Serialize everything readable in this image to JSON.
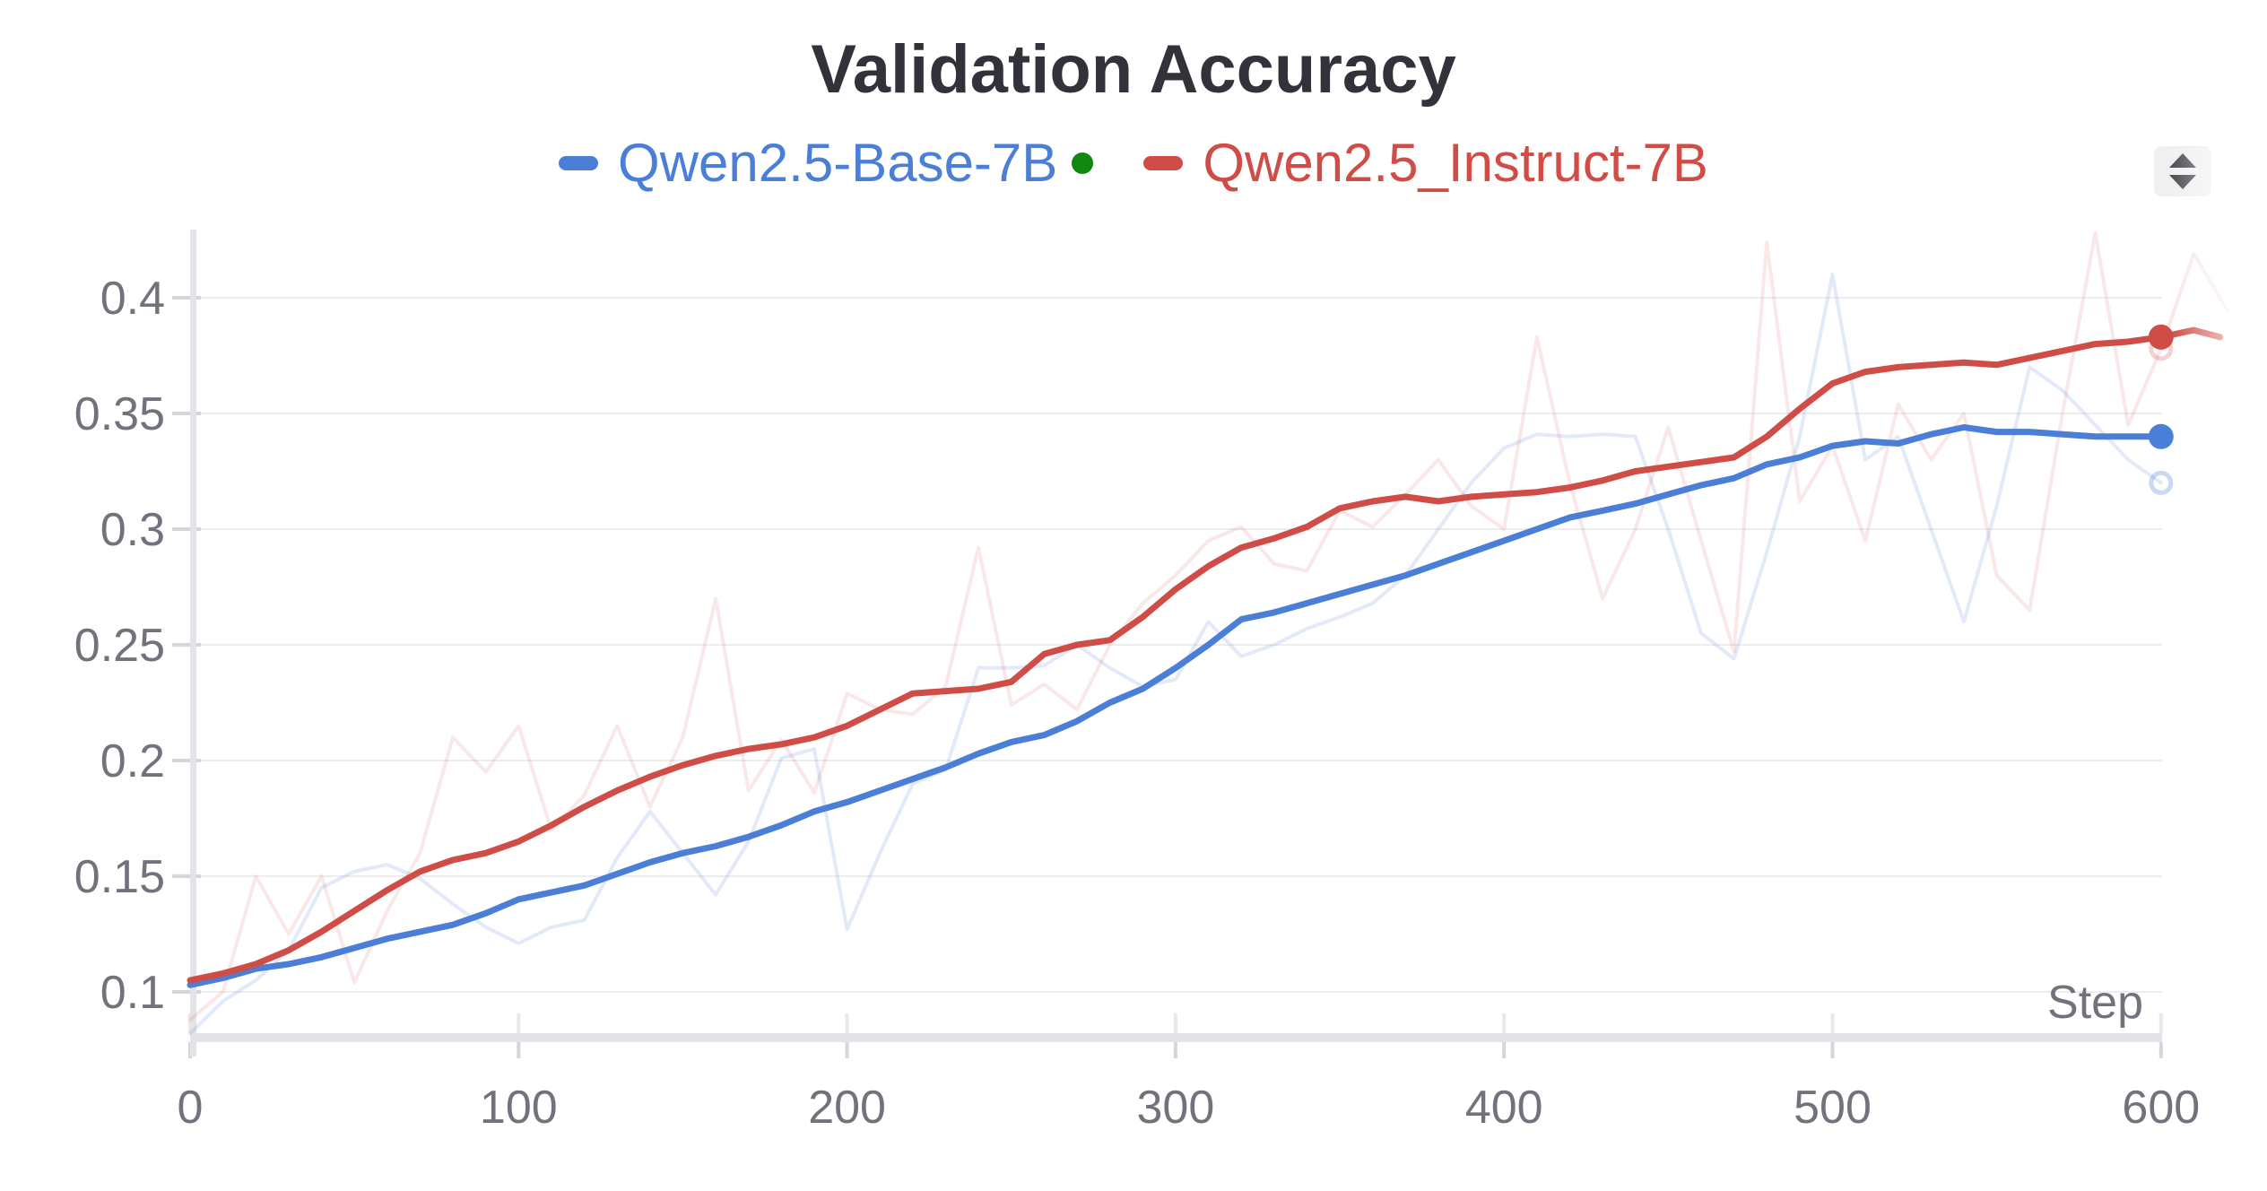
{
  "title": "Validation Accuracy",
  "legend": {
    "items": [
      {
        "label": "Qwen2.5-Base-7B",
        "color": "#4b7ed7"
      },
      {
        "label": "Qwen2.5_Instruct-7B",
        "color": "#d04c46"
      }
    ],
    "live_dot_color": "#10870f"
  },
  "controls": {
    "expand_icon": "up-down-arrows",
    "icon_color": "#4b4b52",
    "icon_bg": "#f0f0f1"
  },
  "chart_data": {
    "type": "line",
    "title": "Validation Accuracy",
    "xlabel": "Step",
    "ylabel": "",
    "x_ticks": [
      0,
      100,
      200,
      300,
      400,
      500,
      600
    ],
    "y_ticks": [
      0.1,
      0.15,
      0.2,
      0.25,
      0.3,
      0.35,
      0.4
    ],
    "xlim": [
      0,
      632
    ],
    "ylim": [
      0.082,
      0.429
    ],
    "grid": "horizontal-only",
    "legend_position": "top-center",
    "axis_color": "#e4e4e8",
    "grid_color": "#ededf0",
    "tick_color": "#d6d6da",
    "label_color": "#72727c",
    "series": [
      {
        "name": "Qwen2.5-Base-7B (raw)",
        "role": "raw",
        "color": "#4b7ed7",
        "opacity": 0.16,
        "width": 4,
        "points": [
          [
            0,
            0.082
          ],
          [
            10,
            0.096
          ],
          [
            20,
            0.105
          ],
          [
            30,
            0.118
          ],
          [
            40,
            0.145
          ],
          [
            50,
            0.152
          ],
          [
            60,
            0.155
          ],
          [
            70,
            0.149
          ],
          [
            80,
            0.138
          ],
          [
            90,
            0.128
          ],
          [
            100,
            0.121
          ],
          [
            110,
            0.128
          ],
          [
            120,
            0.131
          ],
          [
            130,
            0.158
          ],
          [
            140,
            0.178
          ],
          [
            150,
            0.16
          ],
          [
            160,
            0.142
          ],
          [
            170,
            0.165
          ],
          [
            180,
            0.201
          ],
          [
            190,
            0.205
          ],
          [
            200,
            0.127
          ],
          [
            210,
            0.16
          ],
          [
            220,
            0.19
          ],
          [
            230,
            0.196
          ],
          [
            240,
            0.24
          ],
          [
            250,
            0.24
          ],
          [
            260,
            0.241
          ],
          [
            270,
            0.25
          ],
          [
            280,
            0.24
          ],
          [
            290,
            0.232
          ],
          [
            300,
            0.235
          ],
          [
            310,
            0.26
          ],
          [
            320,
            0.245
          ],
          [
            330,
            0.25
          ],
          [
            340,
            0.257
          ],
          [
            350,
            0.262
          ],
          [
            360,
            0.268
          ],
          [
            370,
            0.28
          ],
          [
            380,
            0.3
          ],
          [
            390,
            0.32
          ],
          [
            400,
            0.335
          ],
          [
            410,
            0.341
          ],
          [
            420,
            0.34
          ],
          [
            430,
            0.341
          ],
          [
            440,
            0.34
          ],
          [
            450,
            0.3
          ],
          [
            460,
            0.255
          ],
          [
            470,
            0.244
          ],
          [
            480,
            0.29
          ],
          [
            490,
            0.34
          ],
          [
            500,
            0.41
          ],
          [
            510,
            0.33
          ],
          [
            520,
            0.34
          ],
          [
            530,
            0.3
          ],
          [
            540,
            0.26
          ],
          [
            550,
            0.31
          ],
          [
            560,
            0.37
          ],
          [
            570,
            0.36
          ],
          [
            580,
            0.345
          ],
          [
            590,
            0.33
          ],
          [
            600,
            0.32
          ]
        ]
      },
      {
        "name": "Qwen2.5_Instruct-7B (raw)",
        "role": "raw",
        "color": "#d04c46",
        "opacity": 0.13,
        "width": 4,
        "points": [
          [
            0,
            0.088
          ],
          [
            10,
            0.1
          ],
          [
            20,
            0.15
          ],
          [
            30,
            0.125
          ],
          [
            40,
            0.15
          ],
          [
            50,
            0.104
          ],
          [
            60,
            0.135
          ],
          [
            70,
            0.16
          ],
          [
            80,
            0.21
          ],
          [
            90,
            0.195
          ],
          [
            100,
            0.215
          ],
          [
            110,
            0.17
          ],
          [
            120,
            0.185
          ],
          [
            130,
            0.215
          ],
          [
            140,
            0.18
          ],
          [
            150,
            0.21
          ],
          [
            160,
            0.27
          ],
          [
            170,
            0.187
          ],
          [
            180,
            0.209
          ],
          [
            190,
            0.186
          ],
          [
            200,
            0.229
          ],
          [
            210,
            0.222
          ],
          [
            220,
            0.22
          ],
          [
            230,
            0.232
          ],
          [
            240,
            0.292
          ],
          [
            250,
            0.224
          ],
          [
            260,
            0.233
          ],
          [
            270,
            0.222
          ],
          [
            280,
            0.25
          ],
          [
            290,
            0.268
          ],
          [
            300,
            0.28
          ],
          [
            310,
            0.295
          ],
          [
            320,
            0.301
          ],
          [
            330,
            0.285
          ],
          [
            340,
            0.282
          ],
          [
            350,
            0.308
          ],
          [
            360,
            0.301
          ],
          [
            370,
            0.315
          ],
          [
            380,
            0.33
          ],
          [
            390,
            0.31
          ],
          [
            400,
            0.3
          ],
          [
            410,
            0.383
          ],
          [
            420,
            0.32
          ],
          [
            430,
            0.27
          ],
          [
            440,
            0.3
          ],
          [
            450,
            0.344
          ],
          [
            460,
            0.295
          ],
          [
            470,
            0.247
          ],
          [
            480,
            0.424
          ],
          [
            490,
            0.312
          ],
          [
            500,
            0.336
          ],
          [
            510,
            0.295
          ],
          [
            520,
            0.354
          ],
          [
            530,
            0.33
          ],
          [
            540,
            0.35
          ],
          [
            550,
            0.28
          ],
          [
            560,
            0.265
          ],
          [
            570,
            0.35
          ],
          [
            580,
            0.428
          ],
          [
            590,
            0.345
          ],
          [
            600,
            0.378
          ],
          [
            610,
            0.419
          ],
          [
            620,
            0.395
          ]
        ]
      },
      {
        "name": "Qwen2.5-Base-7B",
        "role": "smoothed",
        "color": "#4b7ed7",
        "opacity": 1,
        "width": 7,
        "points": [
          [
            0,
            0.103
          ],
          [
            10,
            0.106
          ],
          [
            20,
            0.11
          ],
          [
            30,
            0.112
          ],
          [
            40,
            0.115
          ],
          [
            50,
            0.119
          ],
          [
            60,
            0.123
          ],
          [
            70,
            0.126
          ],
          [
            80,
            0.129
          ],
          [
            90,
            0.134
          ],
          [
            100,
            0.14
          ],
          [
            110,
            0.143
          ],
          [
            120,
            0.146
          ],
          [
            130,
            0.151
          ],
          [
            140,
            0.156
          ],
          [
            150,
            0.16
          ],
          [
            160,
            0.163
          ],
          [
            170,
            0.167
          ],
          [
            180,
            0.172
          ],
          [
            190,
            0.178
          ],
          [
            200,
            0.182
          ],
          [
            210,
            0.187
          ],
          [
            220,
            0.192
          ],
          [
            230,
            0.197
          ],
          [
            240,
            0.203
          ],
          [
            250,
            0.208
          ],
          [
            260,
            0.211
          ],
          [
            270,
            0.217
          ],
          [
            280,
            0.225
          ],
          [
            290,
            0.231
          ],
          [
            300,
            0.24
          ],
          [
            310,
            0.25
          ],
          [
            320,
            0.261
          ],
          [
            330,
            0.264
          ],
          [
            340,
            0.268
          ],
          [
            350,
            0.272
          ],
          [
            360,
            0.276
          ],
          [
            370,
            0.28
          ],
          [
            380,
            0.285
          ],
          [
            390,
            0.29
          ],
          [
            400,
            0.295
          ],
          [
            410,
            0.3
          ],
          [
            420,
            0.305
          ],
          [
            430,
            0.308
          ],
          [
            440,
            0.311
          ],
          [
            450,
            0.315
          ],
          [
            460,
            0.319
          ],
          [
            470,
            0.322
          ],
          [
            480,
            0.328
          ],
          [
            490,
            0.331
          ],
          [
            500,
            0.336
          ],
          [
            510,
            0.338
          ],
          [
            520,
            0.337
          ],
          [
            530,
            0.341
          ],
          [
            540,
            0.344
          ],
          [
            550,
            0.342
          ],
          [
            560,
            0.342
          ],
          [
            570,
            0.341
          ],
          [
            580,
            0.34
          ],
          [
            590,
            0.34
          ],
          [
            600,
            0.34
          ]
        ]
      },
      {
        "name": "Qwen2.5_Instruct-7B",
        "role": "smoothed",
        "color": "#d04c46",
        "opacity": 1,
        "width": 7,
        "points": [
          [
            0,
            0.105
          ],
          [
            10,
            0.108
          ],
          [
            20,
            0.112
          ],
          [
            30,
            0.118
          ],
          [
            40,
            0.126
          ],
          [
            50,
            0.135
          ],
          [
            60,
            0.144
          ],
          [
            70,
            0.152
          ],
          [
            80,
            0.157
          ],
          [
            90,
            0.16
          ],
          [
            100,
            0.165
          ],
          [
            110,
            0.172
          ],
          [
            120,
            0.18
          ],
          [
            130,
            0.187
          ],
          [
            140,
            0.193
          ],
          [
            150,
            0.198
          ],
          [
            160,
            0.202
          ],
          [
            170,
            0.205
          ],
          [
            180,
            0.207
          ],
          [
            190,
            0.21
          ],
          [
            200,
            0.215
          ],
          [
            210,
            0.222
          ],
          [
            220,
            0.229
          ],
          [
            230,
            0.23
          ],
          [
            240,
            0.231
          ],
          [
            250,
            0.234
          ],
          [
            260,
            0.246
          ],
          [
            270,
            0.25
          ],
          [
            280,
            0.252
          ],
          [
            290,
            0.262
          ],
          [
            300,
            0.274
          ],
          [
            310,
            0.284
          ],
          [
            320,
            0.292
          ],
          [
            330,
            0.296
          ],
          [
            340,
            0.301
          ],
          [
            350,
            0.309
          ],
          [
            360,
            0.312
          ],
          [
            370,
            0.314
          ],
          [
            380,
            0.312
          ],
          [
            390,
            0.314
          ],
          [
            400,
            0.315
          ],
          [
            410,
            0.316
          ],
          [
            420,
            0.318
          ],
          [
            430,
            0.321
          ],
          [
            440,
            0.325
          ],
          [
            450,
            0.327
          ],
          [
            460,
            0.329
          ],
          [
            470,
            0.331
          ],
          [
            480,
            0.34
          ],
          [
            490,
            0.352
          ],
          [
            500,
            0.363
          ],
          [
            510,
            0.368
          ],
          [
            520,
            0.37
          ],
          [
            530,
            0.371
          ],
          [
            540,
            0.372
          ],
          [
            550,
            0.371
          ],
          [
            560,
            0.374
          ],
          [
            570,
            0.377
          ],
          [
            580,
            0.38
          ],
          [
            590,
            0.381
          ],
          [
            600,
            0.383
          ],
          [
            610,
            0.386
          ],
          [
            618,
            0.383
          ]
        ]
      }
    ],
    "end_markers": [
      {
        "series": 2,
        "step": 600,
        "value": 0.34,
        "style": "filled",
        "color": "#4b7ed7"
      },
      {
        "series": 3,
        "step": 600,
        "value": 0.383,
        "style": "filled",
        "color": "#d04c46"
      },
      {
        "series": 0,
        "step": 600,
        "value": 0.32,
        "style": "open",
        "color": "#4b7ed7",
        "opacity": 0.3
      },
      {
        "series": 1,
        "step": 600,
        "value": 0.378,
        "style": "open",
        "color": "#d04c46",
        "opacity": 0.25
      }
    ]
  }
}
